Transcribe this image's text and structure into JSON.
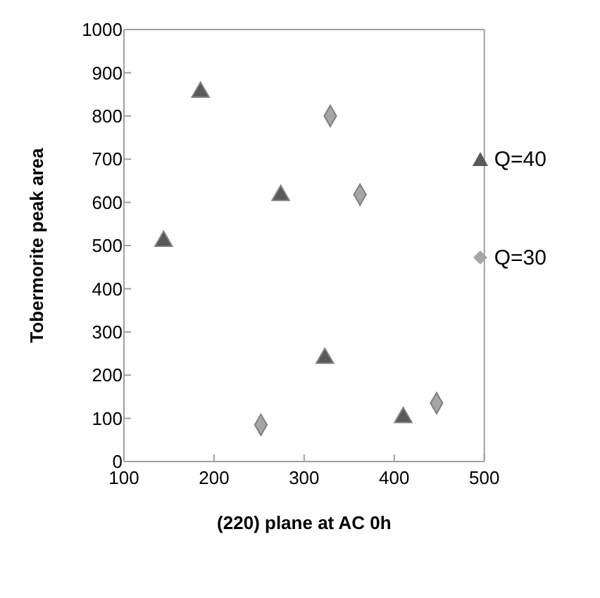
{
  "chart_data": {
    "type": "scatter",
    "xlabel": "(220) plane at AC 0h",
    "ylabel": "Tobermorite peak area",
    "series": [
      {
        "name": "Q=40",
        "color": "#595959",
        "marker": "triangle",
        "x": [
          144,
          185,
          274,
          323,
          410
        ],
        "values": [
          510,
          855,
          616,
          239,
          102
        ]
      },
      {
        "name": "Q=30",
        "color": "#a6a6a6",
        "marker": "diamond",
        "x": [
          329,
          362,
          252,
          447
        ],
        "values": [
          800,
          618,
          85,
          135
        ]
      }
    ],
    "xlim": [
      100,
      500
    ],
    "xticks": [
      100,
      200,
      300,
      400,
      500
    ],
    "ylim": [
      0,
      1000
    ],
    "yticks": [
      0,
      100,
      200,
      300,
      400,
      500,
      600,
      700,
      800,
      900,
      1000
    ],
    "grid": false,
    "legend": "top right"
  }
}
